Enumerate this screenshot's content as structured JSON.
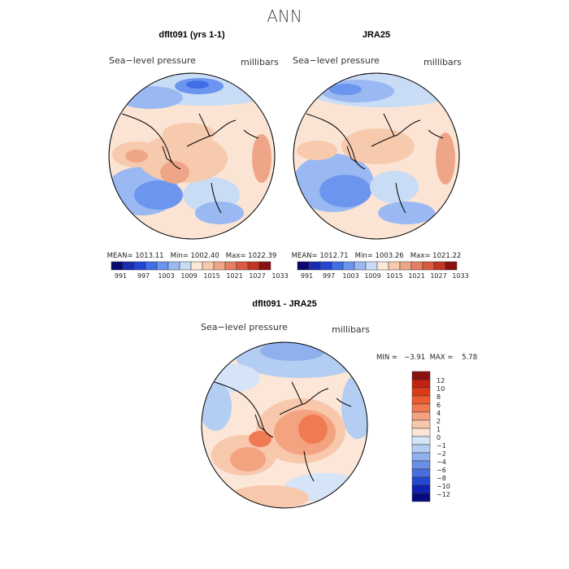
{
  "title": "ANN",
  "panels": [
    {
      "title": "dflt091 (yrs 1-1)",
      "left_label": "Sea−level pressure",
      "right_label": "millibars",
      "stats": "MEAN= 1013.11   Min= 1002.40   Max= 1022.39",
      "colorbar_labels": [
        "991",
        "997",
        "1003",
        "1009",
        "1015",
        "1021",
        "1027",
        "1033"
      ]
    },
    {
      "title": "JRA25",
      "left_label": "Sea−level pressure",
      "right_label": "millibars",
      "stats": "MEAN= 1012.71   Min= 1003.26   Max= 1021.22",
      "colorbar_labels": [
        "991",
        "997",
        "1003",
        "1009",
        "1015",
        "1021",
        "1027",
        "1033"
      ]
    }
  ],
  "diff_panel": {
    "title": "dflt091 - JRA25",
    "left_label": "Sea−level pressure",
    "right_label": "millibars",
    "stats": "MIN =   −3.91  MAX =    5.78",
    "colorbar_labels": [
      "12",
      "10",
      "8",
      "6",
      "4",
      "2",
      "1",
      "0",
      "−1",
      "−2",
      "−4",
      "−6",
      "−8",
      "−10",
      "−12"
    ]
  },
  "colors": {
    "abs_scale": [
      "#08086e",
      "#1a2cb0",
      "#2346d6",
      "#3f6ee6",
      "#6b95ee",
      "#9ab9f2",
      "#c9dcf6",
      "#fde7d8",
      "#f7c9ad",
      "#efa688",
      "#e67f62",
      "#da5a3f",
      "#c23522",
      "#8b1010"
    ],
    "diff_scale": [
      "#8b1010",
      "#c22010",
      "#dd3a1a",
      "#ec5a30",
      "#f07a52",
      "#f4a380",
      "#f8c8ad",
      "#fbe6d8",
      "#d6e4f7",
      "#b4cdf2",
      "#8fb0ec",
      "#6a8fe6",
      "#4a6ddd",
      "#2546d0",
      "#1020b0",
      "#060a7a"
    ]
  }
}
